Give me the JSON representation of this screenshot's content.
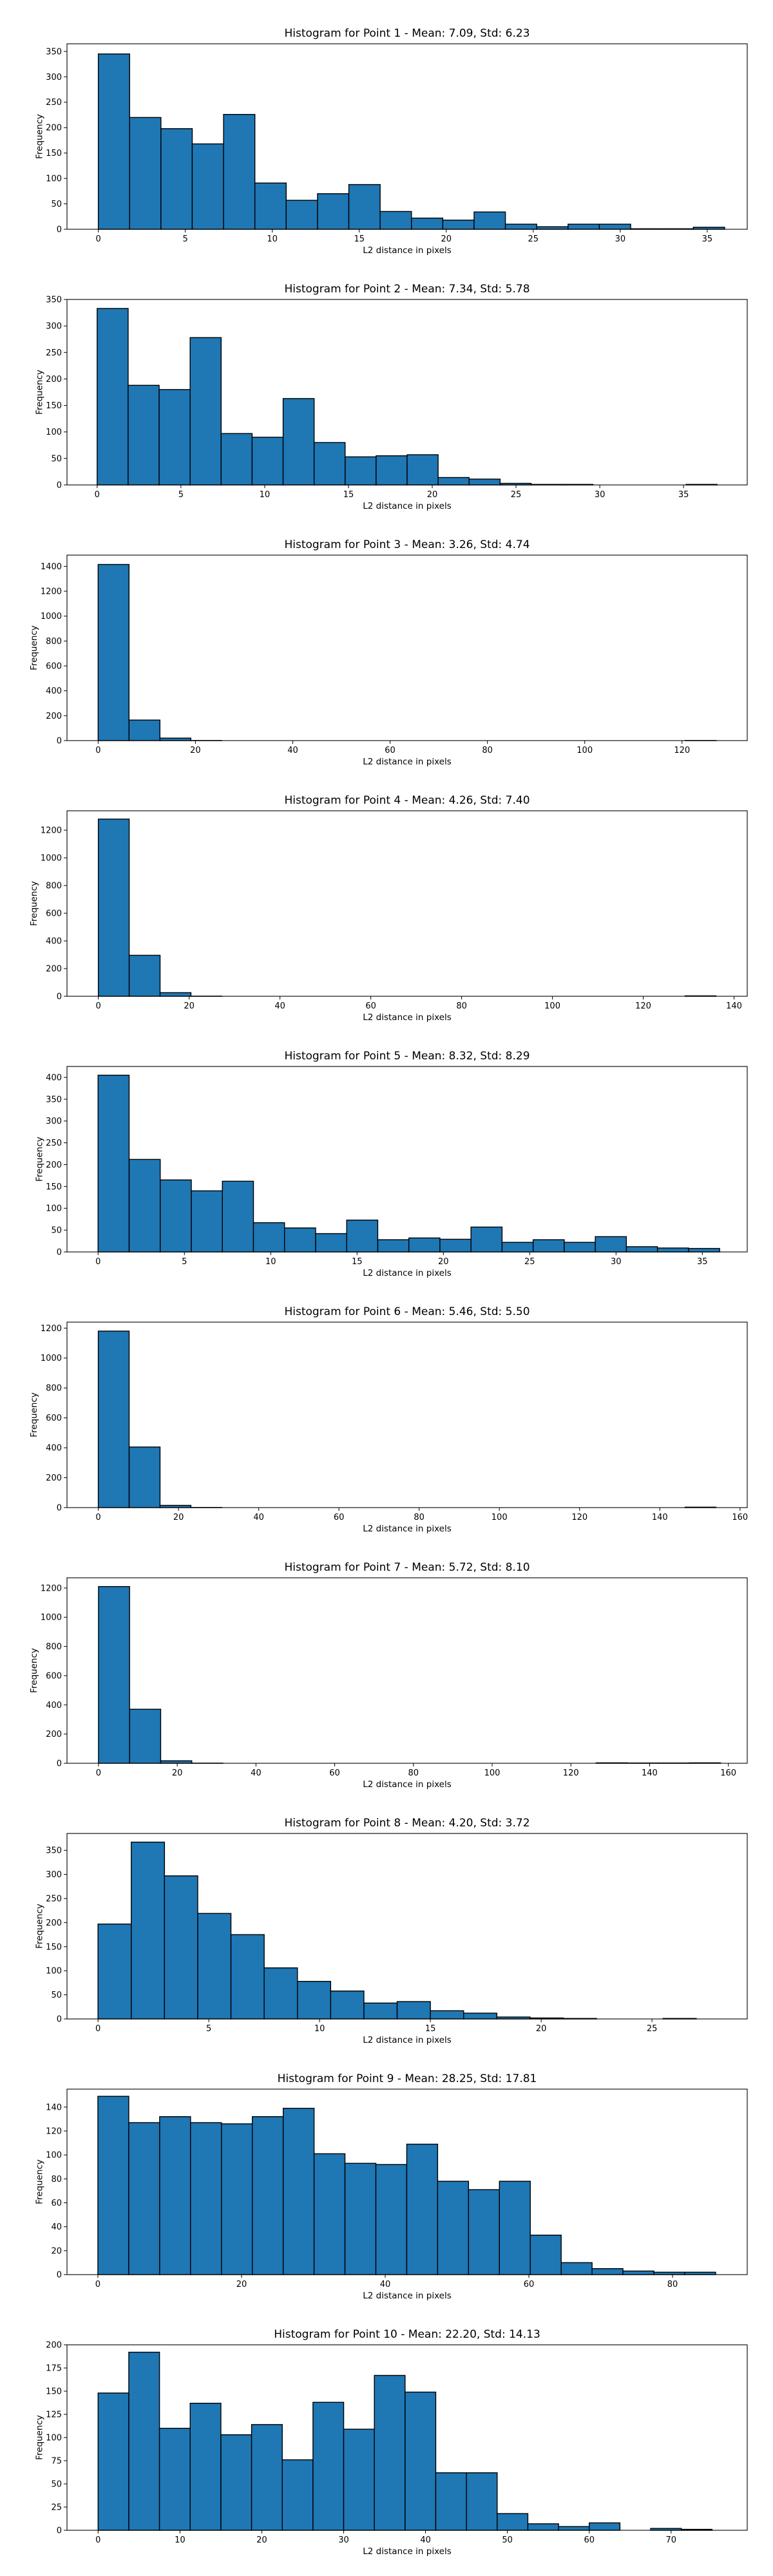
{
  "chart_data": [
    {
      "type": "bar",
      "title": "Histogram for Point 1 - Mean: 7.09, Std: 6.23",
      "xlabel": "L2 distance in pixels",
      "ylabel": "Frequency",
      "xlim": [
        -1.8,
        37.3
      ],
      "ylim": [
        0,
        365
      ],
      "xticks": [
        0,
        5,
        10,
        15,
        20,
        25,
        30,
        35
      ],
      "yticks": [
        0,
        50,
        100,
        150,
        200,
        250,
        300,
        350
      ],
      "bin_edges": [
        0,
        1.8,
        3.6,
        5.4,
        7.2,
        9.0,
        10.8,
        12.6,
        14.4,
        16.2,
        18.0,
        19.8,
        21.6,
        23.4,
        25.2,
        27.0,
        28.8,
        30.6,
        32.4,
        34.2,
        36.0
      ],
      "values": [
        345,
        220,
        198,
        168,
        226,
        91,
        57,
        70,
        88,
        35,
        22,
        18,
        34,
        10,
        5,
        10,
        10,
        1,
        1,
        4
      ]
    },
    {
      "type": "bar",
      "title": "Histogram for Point 2 - Mean: 7.34, Std: 5.78",
      "xlabel": "L2 distance in pixels",
      "ylabel": "Frequency",
      "xlim": [
        -1.8,
        38.8
      ],
      "ylim": [
        0,
        350
      ],
      "xticks": [
        0,
        5,
        10,
        15,
        20,
        25,
        30,
        35
      ],
      "yticks": [
        0,
        50,
        100,
        150,
        200,
        250,
        300,
        350
      ],
      "bin_edges": [
        0,
        1.85,
        3.7,
        5.55,
        7.4,
        9.25,
        11.1,
        12.95,
        14.8,
        16.65,
        18.5,
        20.35,
        22.2,
        24.05,
        25.9,
        27.75,
        29.6,
        31.45,
        33.3,
        35.15,
        37.0
      ],
      "values": [
        333,
        188,
        180,
        278,
        97,
        90,
        163,
        80,
        53,
        55,
        57,
        14,
        11,
        3,
        1,
        1,
        0,
        0,
        0,
        1
      ]
    },
    {
      "type": "bar",
      "title": "Histogram for Point 3 - Mean: 3.26, Std: 4.74",
      "xlabel": "L2 distance in pixels",
      "ylabel": "Frequency",
      "xlim": [
        -6.4,
        133.4
      ],
      "ylim": [
        0,
        1490
      ],
      "xticks": [
        0,
        20,
        40,
        60,
        80,
        100,
        120
      ],
      "yticks": [
        0,
        200,
        400,
        600,
        800,
        1000,
        1200,
        1400
      ],
      "bin_edges": [
        0,
        6.35,
        12.7,
        19.05,
        25.4,
        31.75,
        38.1,
        44.45,
        50.8,
        57.15,
        63.5,
        69.85,
        76.2,
        82.55,
        88.9,
        95.25,
        101.6,
        107.95,
        114.3,
        120.65,
        127.0
      ],
      "values": [
        1415,
        165,
        20,
        1,
        0,
        0,
        0,
        0,
        0,
        0,
        0,
        0,
        0,
        0,
        0,
        0,
        0,
        0,
        0,
        1
      ]
    },
    {
      "type": "bar",
      "title": "Histogram for Point 4 - Mean: 4.26, Std: 7.40",
      "xlabel": "L2 distance in pixels",
      "ylabel": "Frequency",
      "xlim": [
        -6.9,
        142.9
      ],
      "ylim": [
        0,
        1340
      ],
      "xticks": [
        0,
        20,
        40,
        60,
        80,
        100,
        120,
        140
      ],
      "yticks": [
        0,
        200,
        400,
        600,
        800,
        1000,
        1200
      ],
      "bin_edges": [
        0,
        6.8,
        13.6,
        20.4,
        27.2,
        34.0,
        40.8,
        47.6,
        54.4,
        61.2,
        68.0,
        74.8,
        81.6,
        88.4,
        95.2,
        102.0,
        108.8,
        115.6,
        122.4,
        129.2,
        136.0
      ],
      "values": [
        1280,
        296,
        26,
        1,
        0,
        0,
        0,
        0,
        0,
        0,
        0,
        0,
        0,
        0,
        0,
        0,
        0,
        0,
        0,
        3
      ]
    },
    {
      "type": "bar",
      "title": "Histogram for Point 5 - Mean: 8.32, Std: 8.29",
      "xlabel": "L2 distance in pixels",
      "ylabel": "Frequency",
      "xlim": [
        -1.8,
        37.6
      ],
      "ylim": [
        0,
        425
      ],
      "xticks": [
        0,
        5,
        10,
        15,
        20,
        25,
        30,
        35
      ],
      "yticks": [
        0,
        50,
        100,
        150,
        200,
        250,
        300,
        350,
        400
      ],
      "bin_edges": [
        0,
        1.8,
        3.6,
        5.4,
        7.2,
        9.0,
        10.8,
        12.6,
        14.4,
        16.2,
        18.0,
        19.8,
        21.6,
        23.4,
        25.2,
        27.0,
        28.8,
        30.6,
        32.4,
        34.2,
        36.0
      ],
      "values": [
        405,
        212,
        165,
        140,
        162,
        67,
        55,
        42,
        73,
        28,
        32,
        29,
        57,
        22,
        28,
        22,
        35,
        12,
        9,
        8
      ]
    },
    {
      "type": "bar",
      "title": "Histogram for Point 6 - Mean: 5.46, Std: 5.50",
      "xlabel": "L2 distance in pixels",
      "ylabel": "Frequency",
      "xlim": [
        -7.8,
        161.8
      ],
      "ylim": [
        0,
        1240
      ],
      "xticks": [
        0,
        20,
        40,
        60,
        80,
        100,
        120,
        140,
        160
      ],
      "yticks": [
        0,
        200,
        400,
        600,
        800,
        1000,
        1200
      ],
      "bin_edges": [
        0,
        7.7,
        15.4,
        23.1,
        30.8,
        38.5,
        46.2,
        53.9,
        61.6,
        69.3,
        77.0,
        84.7,
        92.4,
        100.1,
        107.8,
        115.5,
        123.2,
        130.9,
        138.6,
        146.3,
        154.0
      ],
      "values": [
        1180,
        405,
        15,
        1,
        0,
        0,
        0,
        0,
        0,
        0,
        0,
        0,
        0,
        0,
        0,
        0,
        0,
        0,
        0,
        3
      ]
    },
    {
      "type": "bar",
      "title": "Histogram for Point 7 - Mean: 5.72, Std: 8.10",
      "xlabel": "L2 distance in pixels",
      "ylabel": "Frequency",
      "xlim": [
        -8.0,
        164.8
      ],
      "ylim": [
        0,
        1270
      ],
      "xticks": [
        0,
        20,
        40,
        60,
        80,
        100,
        120,
        140,
        160
      ],
      "yticks": [
        0,
        200,
        400,
        600,
        800,
        1000,
        1200
      ],
      "bin_edges": [
        0,
        7.9,
        15.8,
        23.7,
        31.6,
        39.5,
        47.4,
        55.3,
        63.2,
        71.1,
        79.0,
        86.9,
        94.8,
        102.7,
        110.6,
        118.5,
        126.4,
        134.3,
        142.2,
        150.1,
        158.0
      ],
      "values": [
        1210,
        370,
        17,
        1,
        0,
        0,
        0,
        0,
        0,
        0,
        0,
        0,
        0,
        0,
        0,
        0,
        3,
        2,
        2,
        3
      ]
    },
    {
      "type": "bar",
      "title": "Histogram for Point 8 - Mean: 4.20, Std: 3.72",
      "xlabel": "L2 distance in pixels",
      "ylabel": "Frequency",
      "xlim": [
        -1.4,
        29.3
      ],
      "ylim": [
        0,
        385
      ],
      "xticks": [
        0,
        5,
        10,
        15,
        20,
        25
      ],
      "yticks": [
        0,
        50,
        100,
        150,
        200,
        250,
        300,
        350
      ],
      "bin_edges": [
        0,
        1.5,
        3.0,
        4.5,
        6.0,
        7.5,
        9.0,
        10.5,
        12.0,
        13.5,
        15.0,
        16.5,
        18.0,
        19.5,
        21.0,
        22.5,
        24.0,
        25.5,
        27.0,
        28.5,
        30.0
      ],
      "values": [
        197,
        367,
        297,
        219,
        175,
        106,
        78,
        58,
        33,
        36,
        17,
        12,
        4,
        2,
        1,
        0,
        0,
        1,
        0,
        0
      ]
    },
    {
      "type": "bar",
      "title": "Histogram for Point 9 - Mean: 28.25, Std: 17.81",
      "xlabel": "L2 distance in pixels",
      "ylabel": "Frequency",
      "xlim": [
        -4.3,
        90.4
      ],
      "ylim": [
        0,
        155
      ],
      "xticks": [
        0,
        20,
        40,
        60,
        80
      ],
      "yticks": [
        0,
        20,
        40,
        60,
        80,
        100,
        120,
        140
      ],
      "bin_edges": [
        0,
        4.3,
        8.6,
        12.9,
        17.2,
        21.5,
        25.8,
        30.1,
        34.4,
        38.7,
        43.0,
        47.3,
        51.6,
        55.9,
        60.2,
        64.5,
        68.8,
        73.1,
        77.4,
        81.7,
        86.0
      ],
      "values": [
        149,
        127,
        132,
        127,
        126,
        132,
        139,
        101,
        93,
        92,
        109,
        78,
        71,
        78,
        33,
        10,
        5,
        3,
        2,
        2
      ]
    },
    {
      "type": "bar",
      "title": "Histogram for Point 10 - Mean: 22.20, Std: 14.13",
      "xlabel": "L2 distance in pixels",
      "ylabel": "Frequency",
      "xlim": [
        -3.8,
        79.3
      ],
      "ylim": [
        0,
        200
      ],
      "xticks": [
        0,
        10,
        20,
        30,
        40,
        50,
        60,
        70
      ],
      "yticks": [
        0,
        25,
        50,
        75,
        100,
        125,
        150,
        175,
        200
      ],
      "bin_edges": [
        0,
        3.75,
        7.5,
        11.25,
        15.0,
        18.75,
        22.5,
        26.25,
        30.0,
        33.75,
        37.5,
        41.25,
        45.0,
        48.75,
        52.5,
        56.25,
        60.0,
        63.75,
        67.5,
        71.25,
        75.0
      ],
      "values": [
        148,
        192,
        110,
        137,
        103,
        114,
        76,
        138,
        109,
        167,
        149,
        62,
        62,
        18,
        7,
        4,
        8,
        0,
        2,
        1
      ]
    }
  ]
}
